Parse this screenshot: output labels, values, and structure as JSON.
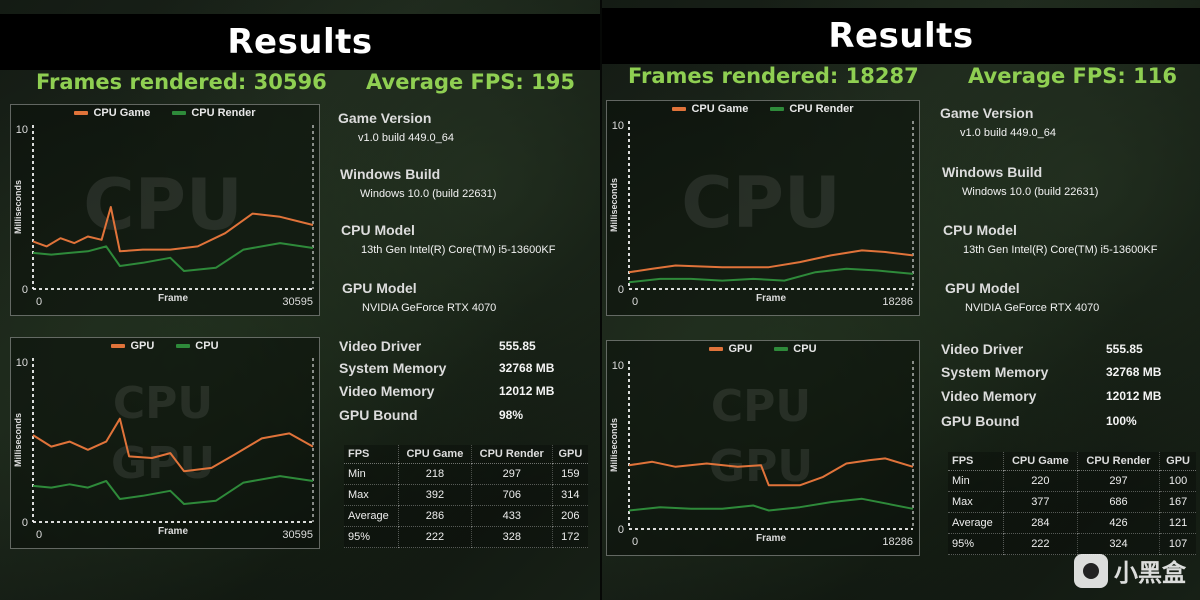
{
  "panels": [
    {
      "title": "Results",
      "frames_label": "Frames rendered: 30596",
      "avg_fps_label": "Average FPS: 195",
      "info": {
        "game_version_label": "Game Version",
        "game_version": "v1.0 build 449.0_64",
        "windows_build_label": "Windows Build",
        "windows_build": "Windows 10.0 (build 22631)",
        "cpu_model_label": "CPU Model",
        "cpu_model": "13th Gen Intel(R) Core(TM) i5-13600KF",
        "gpu_model_label": "GPU Model",
        "gpu_model": "NVIDIA GeForce RTX 4070",
        "video_driver_label": "Video Driver",
        "video_driver": "555.85",
        "system_memory_label": "System Memory",
        "system_memory": "32768 MB",
        "video_memory_label": "Video Memory",
        "video_memory": "12012 MB",
        "gpu_bound_label": "GPU Bound",
        "gpu_bound": "98%"
      },
      "table": {
        "headers": [
          "FPS",
          "CPU Game",
          "CPU Render",
          "GPU"
        ],
        "rows": [
          [
            "Min",
            "218",
            "297",
            "159"
          ],
          [
            "Max",
            "392",
            "706",
            "314"
          ],
          [
            "Average",
            "286",
            "433",
            "206"
          ],
          [
            "95%",
            "222",
            "328",
            "172"
          ]
        ]
      }
    },
    {
      "title": "Results",
      "frames_label": "Frames rendered: 18287",
      "avg_fps_label": "Average FPS: 116",
      "info": {
        "game_version_label": "Game Version",
        "game_version": "v1.0 build 449.0_64",
        "windows_build_label": "Windows Build",
        "windows_build": "Windows 10.0 (build 22631)",
        "cpu_model_label": "CPU Model",
        "cpu_model": "13th Gen Intel(R) Core(TM) i5-13600KF",
        "gpu_model_label": "GPU Model",
        "gpu_model": "NVIDIA GeForce RTX 4070",
        "video_driver_label": "Video Driver",
        "video_driver": "555.85",
        "system_memory_label": "System Memory",
        "system_memory": "32768 MB",
        "video_memory_label": "Video Memory",
        "video_memory": "12012 MB",
        "gpu_bound_label": "GPU Bound",
        "gpu_bound": "100%"
      },
      "table": {
        "headers": [
          "FPS",
          "CPU Game",
          "CPU Render",
          "GPU"
        ],
        "rows": [
          [
            "Min",
            "220",
            "297",
            "100"
          ],
          [
            "Max",
            "377",
            "686",
            "167"
          ],
          [
            "Average",
            "284",
            "426",
            "121"
          ],
          [
            "95%",
            "222",
            "324",
            "107"
          ]
        ]
      }
    }
  ],
  "watermark": "小黑盒",
  "colors": {
    "orange": "#e0733a",
    "green": "#2e8a3a",
    "accent": "#8fcf52"
  },
  "chart_data": [
    {
      "type": "line",
      "watermark_text": [
        "CPU"
      ],
      "xlabel": "Frame",
      "ylabel": "Milliseconds",
      "x_ticks": [
        "0",
        "30595"
      ],
      "y_ticks": [
        "0",
        "10"
      ],
      "xlim": [
        0,
        30595
      ],
      "ylim": [
        0,
        10
      ],
      "series": [
        {
          "name": "CPU Game",
          "color": "#e0733a",
          "points": [
            [
              0,
              2.9
            ],
            [
              1500,
              2.6
            ],
            [
              3000,
              3.1
            ],
            [
              4500,
              2.8
            ],
            [
              6000,
              3.2
            ],
            [
              7500,
              3.0
            ],
            [
              8500,
              5.0
            ],
            [
              9500,
              2.3
            ],
            [
              12000,
              2.4
            ],
            [
              15000,
              2.4
            ],
            [
              18000,
              2.6
            ],
            [
              21000,
              3.4
            ],
            [
              24000,
              4.6
            ],
            [
              27000,
              4.4
            ],
            [
              30595,
              3.9
            ]
          ]
        },
        {
          "name": "CPU Render",
          "color": "#2e8a3a",
          "points": [
            [
              0,
              2.2
            ],
            [
              2000,
              2.1
            ],
            [
              4000,
              2.2
            ],
            [
              6000,
              2.3
            ],
            [
              8000,
              2.6
            ],
            [
              9500,
              1.4
            ],
            [
              12000,
              1.6
            ],
            [
              15000,
              1.9
            ],
            [
              16500,
              1.1
            ],
            [
              20000,
              1.3
            ],
            [
              23000,
              2.4
            ],
            [
              27000,
              2.8
            ],
            [
              30595,
              2.5
            ]
          ]
        }
      ]
    },
    {
      "type": "line",
      "watermark_text": [
        "CPU",
        "GPU"
      ],
      "xlabel": "Frame",
      "ylabel": "Milliseconds",
      "x_ticks": [
        "0",
        "30595"
      ],
      "y_ticks": [
        "0",
        "10"
      ],
      "xlim": [
        0,
        30595
      ],
      "ylim": [
        0,
        10
      ],
      "series": [
        {
          "name": "GPU",
          "color": "#e0733a",
          "points": [
            [
              0,
              5.3
            ],
            [
              2000,
              4.6
            ],
            [
              4000,
              4.9
            ],
            [
              6000,
              4.4
            ],
            [
              8000,
              4.9
            ],
            [
              9500,
              6.3
            ],
            [
              10500,
              4.0
            ],
            [
              13000,
              3.9
            ],
            [
              15000,
              4.2
            ],
            [
              16500,
              3.1
            ],
            [
              19500,
              3.3
            ],
            [
              22000,
              4.1
            ],
            [
              25000,
              5.1
            ],
            [
              28000,
              5.4
            ],
            [
              30595,
              4.6
            ]
          ]
        },
        {
          "name": "CPU",
          "color": "#2e8a3a",
          "points": [
            [
              0,
              2.2
            ],
            [
              2000,
              2.1
            ],
            [
              4000,
              2.3
            ],
            [
              6000,
              2.1
            ],
            [
              8000,
              2.5
            ],
            [
              9500,
              1.4
            ],
            [
              12000,
              1.6
            ],
            [
              15000,
              1.9
            ],
            [
              16500,
              1.1
            ],
            [
              20000,
              1.3
            ],
            [
              23000,
              2.4
            ],
            [
              27000,
              2.8
            ],
            [
              30595,
              2.5
            ]
          ]
        }
      ]
    },
    {
      "type": "line",
      "watermark_text": [
        "CPU"
      ],
      "xlabel": "Frame",
      "ylabel": "Milliseconds",
      "x_ticks": [
        "0",
        "18286"
      ],
      "y_ticks": [
        "0",
        "10"
      ],
      "xlim": [
        0,
        18286
      ],
      "ylim": [
        0,
        10
      ],
      "series": [
        {
          "name": "CPU Game",
          "color": "#e0733a",
          "points": [
            [
              0,
              1.0
            ],
            [
              1500,
              1.2
            ],
            [
              3000,
              1.4
            ],
            [
              6000,
              1.3
            ],
            [
              9000,
              1.3
            ],
            [
              11000,
              1.6
            ],
            [
              13000,
              2.0
            ],
            [
              15000,
              2.3
            ],
            [
              16500,
              2.2
            ],
            [
              18286,
              2.0
            ]
          ]
        },
        {
          "name": "CPU Render",
          "color": "#2e8a3a",
          "points": [
            [
              0,
              0.4
            ],
            [
              2000,
              0.6
            ],
            [
              4000,
              0.6
            ],
            [
              6000,
              0.5
            ],
            [
              8000,
              0.6
            ],
            [
              10000,
              0.5
            ],
            [
              12000,
              1.0
            ],
            [
              14000,
              1.2
            ],
            [
              16000,
              1.1
            ],
            [
              18286,
              0.9
            ]
          ]
        }
      ]
    },
    {
      "type": "line",
      "watermark_text": [
        "CPU",
        "GPU"
      ],
      "xlabel": "Frame",
      "ylabel": "Milliseconds",
      "x_ticks": [
        "0",
        "18286"
      ],
      "y_ticks": [
        "0",
        "10"
      ],
      "xlim": [
        0,
        18286
      ],
      "ylim": [
        0,
        10
      ],
      "series": [
        {
          "name": "GPU",
          "color": "#e0733a",
          "points": [
            [
              0,
              3.8
            ],
            [
              1500,
              4.0
            ],
            [
              3000,
              3.7
            ],
            [
              5000,
              3.9
            ],
            [
              7000,
              3.7
            ],
            [
              8500,
              3.8
            ],
            [
              9000,
              2.6
            ],
            [
              11000,
              2.6
            ],
            [
              12500,
              3.1
            ],
            [
              14000,
              3.9
            ],
            [
              15500,
              4.1
            ],
            [
              16500,
              4.2
            ],
            [
              18286,
              3.7
            ]
          ]
        },
        {
          "name": "CPU",
          "color": "#2e8a3a",
          "points": [
            [
              0,
              1.1
            ],
            [
              2000,
              1.3
            ],
            [
              4000,
              1.2
            ],
            [
              6000,
              1.2
            ],
            [
              8000,
              1.4
            ],
            [
              9000,
              1.1
            ],
            [
              11000,
              1.3
            ],
            [
              13000,
              1.6
            ],
            [
              15000,
              1.8
            ],
            [
              18286,
              1.2
            ]
          ]
        }
      ]
    }
  ]
}
